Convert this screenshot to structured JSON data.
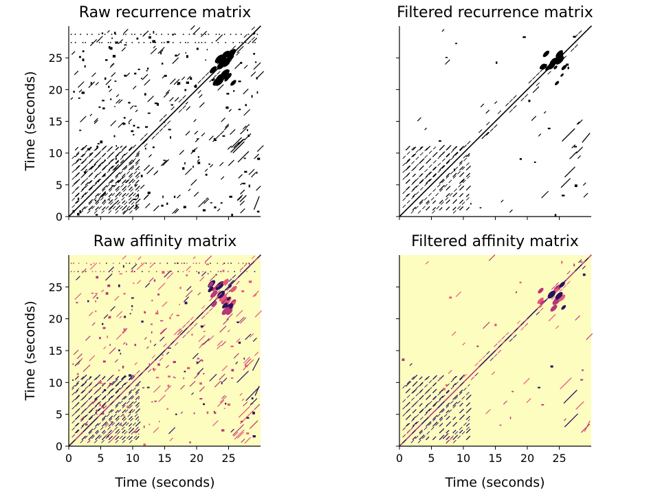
{
  "figure": {
    "panels": [
      {
        "title": "Raw recurrence matrix",
        "ylabel": "Time (seconds)",
        "xlabel": "",
        "style": "binary"
      },
      {
        "title": "Filtered recurrence matrix",
        "ylabel": "",
        "xlabel": "",
        "style": "binary"
      },
      {
        "title": "Raw affinity matrix",
        "ylabel": "Time (seconds)",
        "xlabel": "Time (seconds)",
        "style": "affinity"
      },
      {
        "title": "Filtered affinity matrix",
        "ylabel": "",
        "xlabel": "Time (seconds)",
        "style": "affinity"
      }
    ],
    "ticks": [
      0,
      5,
      10,
      15,
      20,
      25
    ]
  },
  "chart_data": [
    {
      "type": "heatmap",
      "title": "Raw recurrence matrix",
      "xlabel": "",
      "ylabel": "Time (seconds)",
      "xlim": [
        0,
        30
      ],
      "ylim": [
        0,
        30
      ],
      "xticks": [
        0,
        5,
        10,
        15,
        20,
        25
      ],
      "yticks": [
        0,
        5,
        10,
        15,
        20,
        25
      ],
      "colormap": "binary",
      "colors": {
        "background": "#ffffff",
        "mark": "#000000"
      },
      "features": {
        "main_diagonal": true,
        "dense_off_diagonal_grid": {
          "x": [
            1,
            11
          ],
          "y": [
            1,
            11
          ]
        },
        "blob_cluster": {
          "x": [
            22,
            26
          ],
          "y": [
            21,
            26
          ]
        },
        "scattered_noise": "high"
      }
    },
    {
      "type": "heatmap",
      "title": "Filtered recurrence matrix",
      "xlabel": "",
      "ylabel": "",
      "xlim": [
        0,
        30
      ],
      "ylim": [
        0,
        30
      ],
      "xticks": [
        0,
        5,
        10,
        15,
        20,
        25
      ],
      "yticks": [
        0,
        5,
        10,
        15,
        20,
        25
      ],
      "colormap": "binary",
      "colors": {
        "background": "#ffffff",
        "mark": "#000000"
      },
      "features": {
        "main_diagonal": true,
        "dense_off_diagonal_grid": {
          "x": [
            1,
            11
          ],
          "y": [
            1,
            11
          ]
        },
        "blob_cluster": {
          "x": [
            22,
            26
          ],
          "y": [
            21,
            26
          ]
        },
        "scattered_noise": "low"
      }
    },
    {
      "type": "heatmap",
      "title": "Raw affinity matrix",
      "xlabel": "Time (seconds)",
      "ylabel": "Time (seconds)",
      "xlim": [
        0,
        30
      ],
      "ylim": [
        0,
        30
      ],
      "xticks": [
        0,
        5,
        10,
        15,
        20,
        25
      ],
      "yticks": [
        0,
        5,
        10,
        15,
        20,
        25
      ],
      "colormap": "magma_r",
      "colors": {
        "background": "#fcfdbf",
        "low": "#e8587a",
        "mid": "#b73779",
        "high": "#2c115f"
      },
      "features": {
        "main_diagonal": true,
        "dense_off_diagonal_grid": {
          "x": [
            1,
            11
          ],
          "y": [
            1,
            11
          ]
        },
        "blob_cluster": {
          "x": [
            22,
            26
          ],
          "y": [
            21,
            26
          ]
        },
        "scattered_noise": "high"
      }
    },
    {
      "type": "heatmap",
      "title": "Filtered affinity matrix",
      "xlabel": "Time (seconds)",
      "ylabel": "",
      "xlim": [
        0,
        30
      ],
      "ylim": [
        0,
        30
      ],
      "xticks": [
        0,
        5,
        10,
        15,
        20,
        25
      ],
      "yticks": [
        0,
        5,
        10,
        15,
        20,
        25
      ],
      "colormap": "magma_r",
      "colors": {
        "background": "#fcfdbf",
        "low": "#e8587a",
        "mid": "#b73779",
        "high": "#2c115f"
      },
      "features": {
        "main_diagonal": true,
        "dense_off_diagonal_grid": {
          "x": [
            1,
            11
          ],
          "y": [
            1,
            11
          ]
        },
        "blob_cluster": {
          "x": [
            22,
            26
          ],
          "y": [
            21,
            26
          ]
        },
        "scattered_noise": "low"
      }
    }
  ]
}
